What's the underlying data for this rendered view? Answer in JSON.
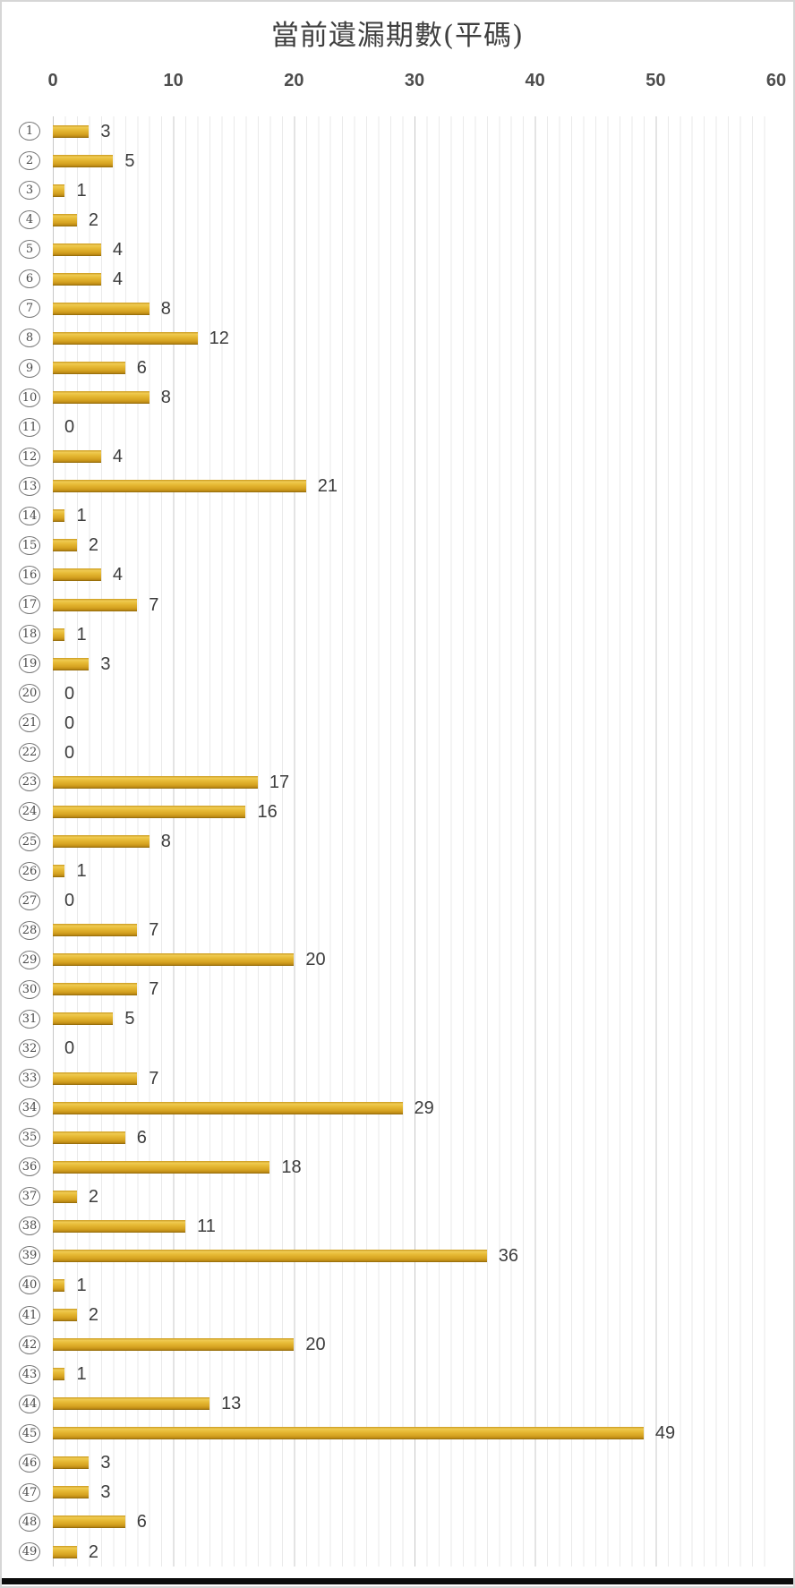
{
  "chart_data": {
    "type": "bar",
    "orientation": "horizontal",
    "title": "當前遺漏期數(平碼)",
    "categories": [
      1,
      2,
      3,
      4,
      5,
      6,
      7,
      8,
      9,
      10,
      11,
      12,
      13,
      14,
      15,
      16,
      17,
      18,
      19,
      20,
      21,
      22,
      23,
      24,
      25,
      26,
      27,
      28,
      29,
      30,
      31,
      32,
      33,
      34,
      35,
      36,
      37,
      38,
      39,
      40,
      41,
      42,
      43,
      44,
      45,
      46,
      47,
      48,
      49
    ],
    "category_style": "circled-number",
    "values": [
      3,
      5,
      1,
      2,
      4,
      4,
      8,
      12,
      6,
      8,
      0,
      4,
      21,
      1,
      2,
      4,
      7,
      1,
      3,
      0,
      0,
      0,
      17,
      16,
      8,
      1,
      0,
      7,
      20,
      7,
      5,
      0,
      7,
      29,
      6,
      18,
      2,
      11,
      36,
      1,
      2,
      20,
      1,
      13,
      49,
      3,
      3,
      6,
      2
    ],
    "data_labels_shown": true,
    "xlim": [
      0,
      60
    ],
    "xticks": [
      0,
      10,
      20,
      30,
      40,
      50,
      60
    ],
    "grid": {
      "minor_step": 1,
      "major_step": 10,
      "minor_color": "#EAEAEA",
      "major_color": "#C8C8C8",
      "grid_on": true
    },
    "legend_position": "none",
    "colors": {
      "bar_main": "#DFAE2B",
      "bar_highlight": "#EFCA52",
      "bar_shadow": "#8A6407",
      "title_text": "#3F3F3F",
      "tick_text": "#4D4D4D",
      "value_text": "#3D3D3D",
      "category_text": "#4A4A4A",
      "frame_border": "#D6D6D6",
      "bottom_strip": "#0C0C0C"
    }
  }
}
